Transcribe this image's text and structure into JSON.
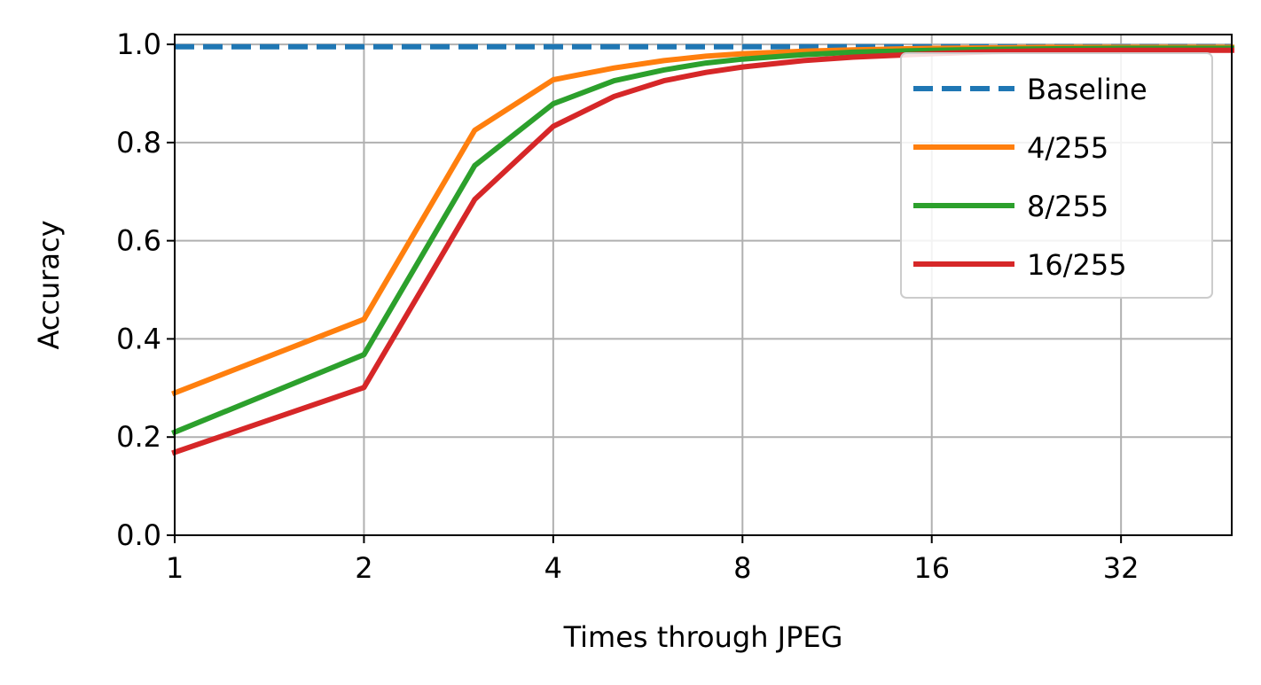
{
  "chart_data": {
    "type": "line",
    "title": "",
    "xlabel": "Times through JPEG",
    "ylabel": "Accuracy",
    "x_scale": "log2",
    "xlim": [
      1,
      48
    ],
    "ylim": [
      0,
      1.02
    ],
    "x_ticks": [
      1,
      2,
      4,
      8,
      16,
      32
    ],
    "x_tick_labels": [
      "1",
      "2",
      "4",
      "8",
      "16",
      "32"
    ],
    "y_ticks": [
      0.0,
      0.2,
      0.4,
      0.6,
      0.8,
      1.0
    ],
    "y_tick_labels": [
      "0.0",
      "0.2",
      "0.4",
      "0.6",
      "0.8",
      "1.0"
    ],
    "grid": true,
    "legend_position": "top-right",
    "x": [
      1,
      2,
      3,
      4,
      5,
      6,
      7,
      8,
      10,
      12,
      16,
      20,
      24,
      32,
      40,
      48
    ],
    "series": [
      {
        "name": "Baseline",
        "color": "#1f77b4",
        "style": "dashed",
        "values": [
          0.995,
          0.995,
          0.995,
          0.995,
          0.995,
          0.995,
          0.995,
          0.995,
          0.995,
          0.995,
          0.995,
          0.995,
          0.995,
          0.995,
          0.995,
          0.995
        ]
      },
      {
        "name": "4/255",
        "color": "#ff7f0e",
        "style": "solid",
        "values": [
          0.29,
          0.44,
          0.825,
          0.928,
          0.952,
          0.967,
          0.976,
          0.981,
          0.986,
          0.989,
          0.992,
          0.993,
          0.994,
          0.994,
          0.994,
          0.994
        ]
      },
      {
        "name": "8/255",
        "color": "#2ca02c",
        "style": "solid",
        "values": [
          0.21,
          0.368,
          0.753,
          0.879,
          0.926,
          0.948,
          0.962,
          0.97,
          0.979,
          0.984,
          0.988,
          0.99,
          0.991,
          0.992,
          0.992,
          0.992
        ]
      },
      {
        "name": "16/255",
        "color": "#d62728",
        "style": "solid",
        "values": [
          0.169,
          0.301,
          0.684,
          0.833,
          0.894,
          0.926,
          0.943,
          0.954,
          0.967,
          0.974,
          0.981,
          0.985,
          0.987,
          0.988,
          0.988,
          0.988
        ]
      }
    ]
  }
}
